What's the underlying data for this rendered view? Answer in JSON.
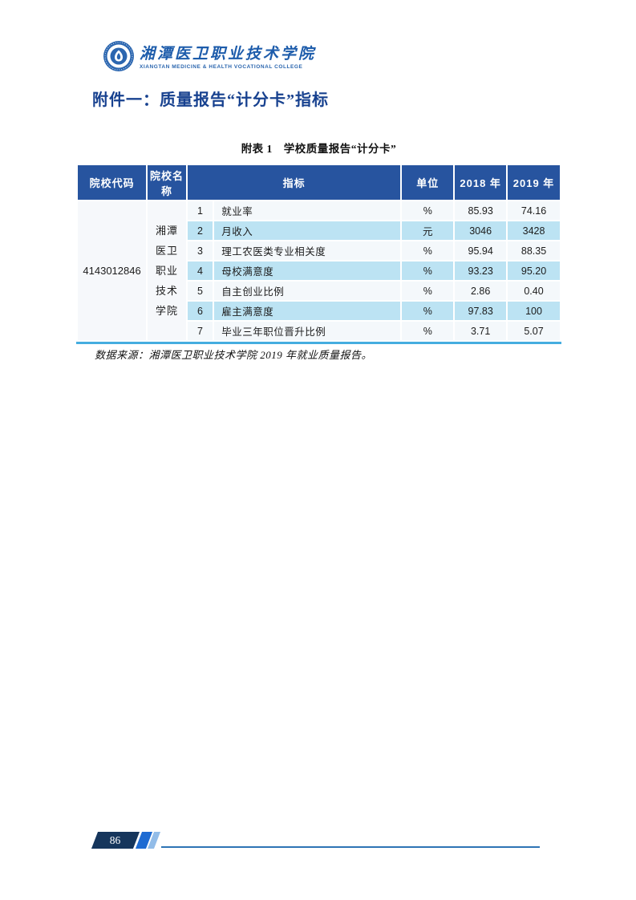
{
  "logo": {
    "college_name_zh": "湘潭医卫职业技术学院",
    "college_name_en": "XIANGTAN MEDICINE & HEALTH VOCATIONAL COLLEGE"
  },
  "heading": "附件一：质量报告“计分卡”指标",
  "table": {
    "caption": "附表 1　学校质量报告“计分卡”",
    "headers": {
      "code": "院校代码",
      "name": "院校名称",
      "indicator": "指标",
      "unit": "单位",
      "y2018": "2018 年",
      "y2019": "2019 年"
    },
    "college_code": "4143012846",
    "college_name_lines": [
      "湘潭",
      "医卫",
      "职业",
      "技术",
      "学院"
    ],
    "rows": [
      {
        "no": "1",
        "indicator": "就业率",
        "unit": "%",
        "y2018": "85.93",
        "y2019": "74.16"
      },
      {
        "no": "2",
        "indicator": "月收入",
        "unit": "元",
        "y2018": "3046",
        "y2019": "3428"
      },
      {
        "no": "3",
        "indicator": "理工农医类专业相关度",
        "unit": "%",
        "y2018": "95.94",
        "y2019": "88.35"
      },
      {
        "no": "4",
        "indicator": "母校满意度",
        "unit": "%",
        "y2018": "93.23",
        "y2019": "95.20"
      },
      {
        "no": "5",
        "indicator": "自主创业比例",
        "unit": "%",
        "y2018": "2.86",
        "y2019": "0.40"
      },
      {
        "no": "6",
        "indicator": "雇主满意度",
        "unit": "%",
        "y2018": "97.83",
        "y2019": "100"
      },
      {
        "no": "7",
        "indicator": "毕业三年职位晋升比例",
        "unit": "%",
        "y2018": "3.71",
        "y2019": "5.07"
      }
    ]
  },
  "note": "数据来源：湘潭医卫职业技术学院 2019 年就业质量报告。",
  "footer": {
    "page_number": "86"
  },
  "colors": {
    "header_bg": "#27549f",
    "band_row_bg": "#bce3f3",
    "plain_row_bg": "#f4f8fb",
    "merged_col_bg": "#f6f8fb",
    "table_bottom_border": "#45ade0",
    "heading_blue": "#17418f",
    "logo_blue": "#1d5cab",
    "footer_navy": "#16365c",
    "footer_stripe_blue": "#1e6bd2",
    "footer_stripe_light": "#92bce8",
    "footer_line": "#2e74b5"
  }
}
